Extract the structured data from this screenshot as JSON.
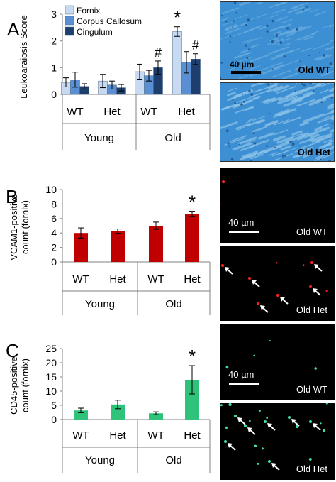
{
  "colors": {
    "fornix": "#c8daf2",
    "corpus_callosum": "#5b8fd4",
    "cingulum": "#1e3f6e",
    "vcam1_bar": "#c00000",
    "cd45_bar": "#2ec27a",
    "error_bar": "#000000",
    "blue_tissue_bg": "#3c8fd2",
    "blue_tissue_light": "#8ec4ea",
    "fluor_bg": "#000000",
    "red_dot": "#ff2020",
    "green_dot": "#40e0a0"
  },
  "panels": {
    "a": {
      "letter": "A"
    },
    "b": {
      "letter": "B"
    },
    "c": {
      "letter": "C"
    }
  },
  "chart_data": [
    {
      "type": "bar",
      "panel": "A",
      "ylabel": "Leukoaraiosis Score",
      "ylim": [
        0,
        3
      ],
      "yticks": [
        "0",
        "1",
        "2",
        "3"
      ],
      "categories": [
        "WT",
        "Het",
        "WT",
        "Het"
      ],
      "groups": [
        {
          "label": "Young",
          "categories": [
            "WT",
            "Het"
          ]
        },
        {
          "label": "Old",
          "categories": [
            "WT",
            "Het"
          ]
        }
      ],
      "legend_position": "top-left",
      "series": [
        {
          "name": "Fornix",
          "values": [
            0.45,
            0.5,
            0.85,
            2.35
          ],
          "errors": [
            0.17,
            0.25,
            0.28,
            0.18
          ]
        },
        {
          "name": "Corpus Callosum",
          "values": [
            0.55,
            0.35,
            0.7,
            1.2
          ],
          "errors": [
            0.28,
            0.15,
            0.2,
            0.4
          ]
        },
        {
          "name": "Cingulum",
          "values": [
            0.3,
            0.25,
            1.0,
            1.32
          ],
          "errors": [
            0.1,
            0.12,
            0.25,
            0.2
          ]
        }
      ],
      "annotations": [
        {
          "text": "*",
          "category_index": 3,
          "series_index": 0
        },
        {
          "text": "#",
          "category_index": 2,
          "series_index": 2
        },
        {
          "text": "#",
          "category_index": 3,
          "series_index": 2
        }
      ]
    },
    {
      "type": "bar",
      "panel": "B",
      "ylabel": "VCAM1-positive count (fornix)",
      "ylim": [
        0,
        10
      ],
      "yticks": [
        "0",
        "2",
        "4",
        "6",
        "8",
        "10"
      ],
      "categories": [
        "WT",
        "Het",
        "WT",
        "Het"
      ],
      "groups": [
        {
          "label": "Young",
          "categories": [
            "WT",
            "Het"
          ]
        },
        {
          "label": "Old",
          "categories": [
            "WT",
            "Het"
          ]
        }
      ],
      "series": [
        {
          "values": [
            4.0,
            4.25,
            5.0,
            6.65
          ],
          "errors": [
            0.7,
            0.3,
            0.5,
            0.35
          ]
        }
      ],
      "annotations": [
        {
          "text": "*",
          "category_index": 3,
          "series_index": 0
        }
      ]
    },
    {
      "type": "bar",
      "panel": "C",
      "ylabel": "CD45-positive count (fornix)",
      "ylim": [
        0,
        25
      ],
      "yticks": [
        "0",
        "5",
        "10",
        "15",
        "20",
        "25"
      ],
      "categories": [
        "WT",
        "Het",
        "WT",
        "Het"
      ],
      "groups": [
        {
          "label": "Young",
          "categories": [
            "WT",
            "Het"
          ]
        },
        {
          "label": "Old",
          "categories": [
            "WT",
            "Het"
          ]
        }
      ],
      "series": [
        {
          "values": [
            3.2,
            5.3,
            2.2,
            14.0
          ],
          "errors": [
            0.8,
            1.5,
            0.5,
            5.0
          ]
        }
      ],
      "annotations": [
        {
          "text": "*",
          "category_index": 3,
          "series_index": 0
        }
      ]
    }
  ],
  "images": [
    {
      "id": "a-top",
      "label": "Old WT",
      "scale_bar": "40 µm",
      "stain": "blue"
    },
    {
      "id": "a-bottom",
      "label": "Old Het",
      "stain": "blue"
    },
    {
      "id": "b-top",
      "label": "Old WT",
      "scale_bar": "40 µm",
      "stain": "red"
    },
    {
      "id": "b-bottom",
      "label": "Old Het",
      "stain": "red"
    },
    {
      "id": "c-top",
      "label": "Old WT",
      "scale_bar": "40 µm",
      "stain": "green"
    },
    {
      "id": "c-bottom",
      "label": "Old Het",
      "stain": "green"
    }
  ]
}
